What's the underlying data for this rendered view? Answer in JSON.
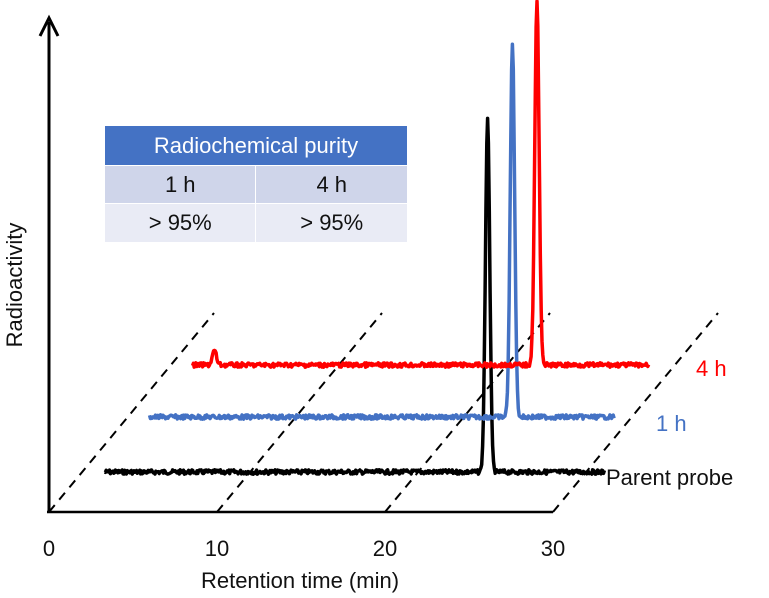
{
  "chart_data": {
    "type": "line",
    "style": "stacked-waterfall",
    "xlabel": "Retention time (min)",
    "ylabel": "Radioactivity",
    "x_ticks": [
      0,
      10,
      20,
      30
    ],
    "xlim": [
      0,
      30
    ],
    "series": [
      {
        "name": "Parent probe",
        "color": "#000000",
        "x_range": [
          1.7,
          31.5
        ],
        "peaks": [
          {
            "x": 24.5,
            "height": 100
          }
        ],
        "baseline_noise": 2
      },
      {
        "name": "1 h",
        "color": "#4472c4",
        "x_range": [
          1.7,
          29.4
        ],
        "peaks": [
          {
            "x": 23.3,
            "height": 100
          }
        ],
        "baseline_noise": 2
      },
      {
        "name": "4 h",
        "color": "#ff0000",
        "x_range": [
          1.7,
          28.9
        ],
        "peaks": [
          {
            "x": 3.0,
            "height": 4
          },
          {
            "x": 22.2,
            "height": 100
          }
        ],
        "baseline_noise": 2
      }
    ]
  },
  "table": {
    "title": "Radiochemical purity",
    "columns": [
      "1 h",
      "4 h"
    ],
    "values": [
      "> 95%",
      "> 95%"
    ]
  },
  "colors": {
    "table_header": "#4472c4",
    "table_row1": "#cfd5ea",
    "table_row2": "#e9ebf5"
  }
}
